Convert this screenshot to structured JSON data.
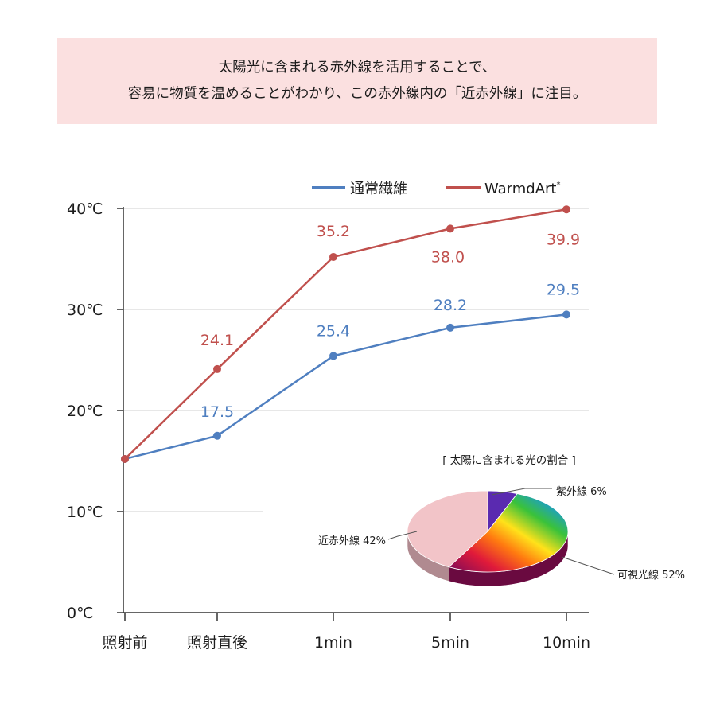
{
  "banner": {
    "line1": "太陽光に含まれる赤外線を活用することで、",
    "line2": "容易に物質を温めることがわかり、この赤外線内の「近赤外線」に注目。"
  },
  "chart_data": [
    {
      "type": "line",
      "categories": [
        "照射前",
        "照射直後",
        "1min",
        "5min",
        "10min"
      ],
      "y_tick_labels": [
        "0℃",
        "10℃",
        "20℃",
        "30℃",
        "40℃"
      ],
      "ylim": [
        0,
        40
      ],
      "legend_position": "top-right",
      "series": [
        {
          "name": "通常繊維",
          "color": "#4f7fc0",
          "values": [
            15.2,
            17.5,
            25.4,
            28.2,
            29.5
          ],
          "labels": [
            "",
            "17.5",
            "25.4",
            "28.2",
            "29.5"
          ]
        },
        {
          "name": "WarmdArt",
          "name_suffix": "*",
          "color": "#c0504d",
          "values": [
            15.2,
            24.1,
            35.2,
            38.0,
            39.9
          ],
          "labels": [
            "",
            "24.1",
            "35.2",
            "38.0",
            "39.9"
          ]
        }
      ]
    },
    {
      "type": "pie",
      "title": "[ 太陽に含まれる光の割合 ]",
      "slices": [
        {
          "label": "紫外線 6%",
          "value": 6,
          "color": "#5a2ab0"
        },
        {
          "label": "可視光線 52%",
          "value": 52,
          "color": "spectrum"
        },
        {
          "label": "近赤外線 42%",
          "value": 42,
          "color": "#f2c4c8"
        }
      ]
    }
  ]
}
